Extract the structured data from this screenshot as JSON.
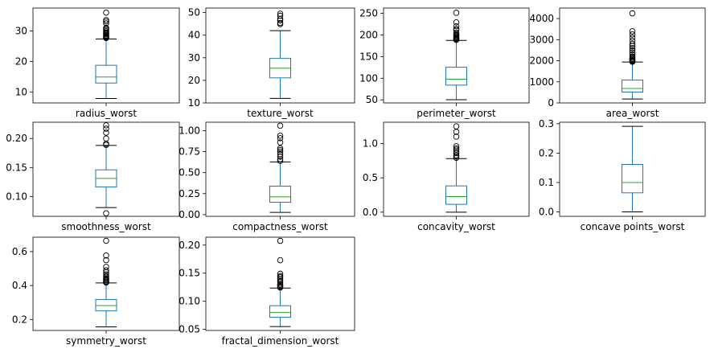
{
  "chart_data": [
    {
      "type": "box",
      "xlabel": "radius_worst",
      "ylim": [
        6.5,
        37.5
      ],
      "yticks": [
        10,
        20,
        30
      ],
      "ytick_labels": [
        "10",
        "20",
        "30"
      ],
      "box": {
        "whislo": 7.93,
        "q1": 13.0,
        "med": 14.97,
        "q3": 18.8,
        "whishi": 27.4
      },
      "fliers": [
        27.7,
        27.9,
        28.1,
        28.4,
        28.6,
        29.0,
        29.2,
        29.5,
        29.9,
        30.3,
        30.7,
        31.0,
        32.5,
        33.1,
        33.6,
        36.0
      ]
    },
    {
      "type": "box",
      "xlabel": "texture_worst",
      "ylim": [
        10,
        52
      ],
      "yticks": [
        10,
        20,
        30,
        40,
        50
      ],
      "ytick_labels": [
        "10",
        "20",
        "30",
        "40",
        "50"
      ],
      "box": {
        "whislo": 12.0,
        "q1": 21.1,
        "med": 25.4,
        "q3": 29.7,
        "whishi": 42.0
      },
      "fliers": [
        44.9,
        45.4,
        46.5,
        47.2,
        48.6,
        49.5
      ]
    },
    {
      "type": "box",
      "xlabel": "perimeter_worst",
      "ylim": [
        43,
        262
      ],
      "yticks": [
        50,
        100,
        150,
        200,
        250
      ],
      "ytick_labels": [
        "50",
        "100",
        "150",
        "200",
        "250"
      ],
      "box": {
        "whislo": 50.4,
        "q1": 84.1,
        "med": 97.7,
        "q3": 125.4,
        "whishi": 187.3
      },
      "fliers": [
        188.5,
        190.0,
        191.5,
        193.0,
        195.0,
        197.0,
        199.0,
        201.0,
        205.0,
        211.0,
        214.0,
        220.0,
        229.0,
        251.0
      ]
    },
    {
      "type": "box",
      "xlabel": "area_worst",
      "ylim": [
        0,
        4500
      ],
      "yticks": [
        0,
        1000,
        2000,
        3000,
        4000
      ],
      "ytick_labels": [
        "0",
        "1000",
        "2000",
        "3000",
        "4000"
      ],
      "box": {
        "whislo": 185,
        "q1": 515,
        "med": 686,
        "q3": 1084,
        "whishi": 1938
      },
      "fliers": [
        1950,
        1980,
        2010,
        2050,
        2100,
        2150,
        2200,
        2300,
        2400,
        2500,
        2600,
        2700,
        2800,
        2950,
        3100,
        3250,
        3400,
        4250
      ]
    },
    {
      "type": "box",
      "xlabel": "smoothness_worst",
      "ylim": [
        0.066,
        0.228
      ],
      "yticks": [
        0.1,
        0.15,
        0.2
      ],
      "ytick_labels": [
        "0.10",
        "0.15",
        "0.20"
      ],
      "box": {
        "whislo": 0.081,
        "q1": 0.1166,
        "med": 0.1313,
        "q3": 0.146,
        "whishi": 0.188
      },
      "fliers": [
        0.0712,
        0.189,
        0.191,
        0.2,
        0.21,
        0.217,
        0.2226
      ]
    },
    {
      "type": "box",
      "xlabel": "compactness_worst",
      "ylim": [
        -0.02,
        1.1
      ],
      "yticks": [
        0,
        0.25,
        0.5,
        0.75,
        1.0
      ],
      "ytick_labels": [
        "0.00",
        "0.25",
        "0.50",
        "0.75",
        "1.00"
      ],
      "box": {
        "whislo": 0.027,
        "q1": 0.147,
        "med": 0.212,
        "q3": 0.339,
        "whishi": 0.627
      },
      "fliers": [
        0.64,
        0.66,
        0.69,
        0.72,
        0.75,
        0.77,
        0.79,
        0.86,
        0.91,
        0.94,
        1.058
      ]
    },
    {
      "type": "box",
      "xlabel": "concavity_worst",
      "ylim": [
        -0.06,
        1.31
      ],
      "yticks": [
        0,
        0.5,
        1.0
      ],
      "ytick_labels": [
        "0.0",
        "0.5",
        "1.0"
      ],
      "box": {
        "whislo": 0.0,
        "q1": 0.1145,
        "med": 0.2267,
        "q3": 0.3829,
        "whishi": 0.78
      },
      "fliers": [
        0.79,
        0.81,
        0.83,
        0.86,
        0.88,
        0.91,
        0.93,
        0.96,
        1.1,
        1.17,
        1.25
      ]
    },
    {
      "type": "box",
      "xlabel": "concave points_worst",
      "ylim": [
        -0.015,
        0.305
      ],
      "yticks": [
        0,
        0.1,
        0.2,
        0.3
      ],
      "ytick_labels": [
        "0.0",
        "0.1",
        "0.2",
        "0.3"
      ],
      "box": {
        "whislo": 0.0,
        "q1": 0.0649,
        "med": 0.0999,
        "q3": 0.1614,
        "whishi": 0.291
      },
      "fliers": []
    },
    {
      "type": "box",
      "xlabel": "symmetry_worst",
      "ylim": [
        0.135,
        0.685
      ],
      "yticks": [
        0.2,
        0.4,
        0.6
      ],
      "ytick_labels": [
        "0.2",
        "0.4",
        "0.6"
      ],
      "box": {
        "whislo": 0.1565,
        "q1": 0.2504,
        "med": 0.2822,
        "q3": 0.3179,
        "whishi": 0.4154
      },
      "fliers": [
        0.418,
        0.423,
        0.43,
        0.436,
        0.44,
        0.447,
        0.455,
        0.466,
        0.478,
        0.49,
        0.51,
        0.55,
        0.577,
        0.6638
      ]
    },
    {
      "type": "box",
      "xlabel": "fractal_dimension_worst",
      "ylim": [
        0.048,
        0.214
      ],
      "yticks": [
        0.05,
        0.1,
        0.15,
        0.2
      ],
      "ytick_labels": [
        "0.05",
        "0.10",
        "0.15",
        "0.20"
      ],
      "box": {
        "whislo": 0.055,
        "q1": 0.0715,
        "med": 0.08,
        "q3": 0.0921,
        "whishi": 0.1234
      },
      "fliers": [
        0.1245,
        0.1255,
        0.127,
        0.129,
        0.131,
        0.134,
        0.137,
        0.14,
        0.143,
        0.145,
        0.149,
        0.173,
        0.2075
      ]
    }
  ],
  "colors": {
    "box": "#1f77b4",
    "median": "#2ca02c",
    "whisker": "#000000",
    "flier": "#000000"
  }
}
